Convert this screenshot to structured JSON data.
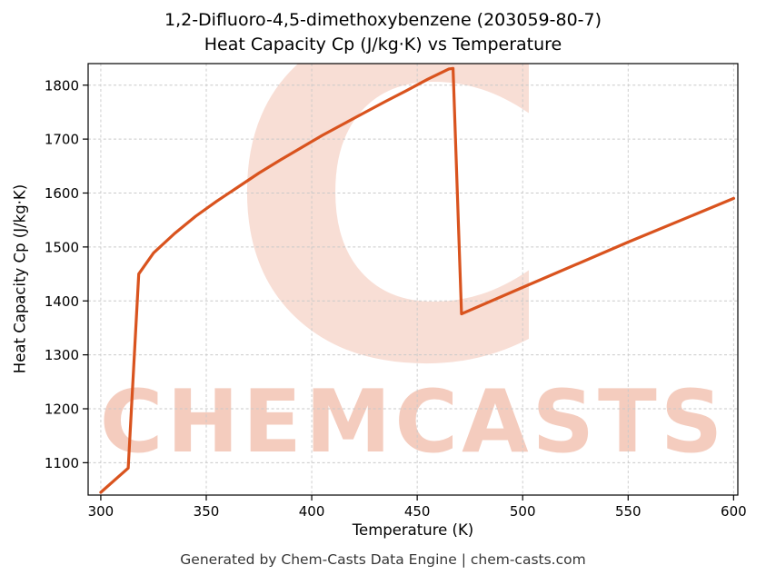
{
  "footer": {
    "text": "Generated by Chem-Casts Data Engine | chem-casts.com"
  },
  "watermark": {
    "letter": "C",
    "text": "CHEMCASTS",
    "color": "#d9531e"
  },
  "chart_data": {
    "type": "line",
    "title": "1,2-Difluoro-4,5-dimethoxybenzene (203059-80-7)\nHeat Capacity Cp (J/kg·K) vs Temperature",
    "title_lines": [
      "1,2-Difluoro-4,5-dimethoxybenzene (203059-80-7)",
      "Heat Capacity Cp (J/kg·K) vs Temperature"
    ],
    "xlabel": "Temperature (K)",
    "ylabel": "Heat Capacity Cp (J/kg·K)",
    "xlim": [
      294,
      602
    ],
    "ylim": [
      1040,
      1840
    ],
    "x_ticks": [
      300,
      350,
      400,
      450,
      500,
      550,
      600
    ],
    "y_ticks": [
      1100,
      1200,
      1300,
      1400,
      1500,
      1600,
      1700,
      1800
    ],
    "grid": true,
    "legend": "none",
    "line_color": "#d9531e",
    "series": [
      {
        "name": "Heat Capacity Cp",
        "x": [
          300,
          313,
          318,
          325,
          335,
          345,
          355,
          365,
          375,
          385,
          395,
          405,
          415,
          425,
          435,
          445,
          455,
          465,
          467,
          471,
          500,
          550,
          600
        ],
        "y": [
          1045,
          1090,
          1450,
          1489,
          1525,
          1557,
          1585,
          1611,
          1637,
          1661,
          1684,
          1707,
          1728,
          1749,
          1770,
          1790,
          1811,
          1830,
          1831,
          1376,
          1425,
          1509,
          1590
        ]
      }
    ]
  }
}
